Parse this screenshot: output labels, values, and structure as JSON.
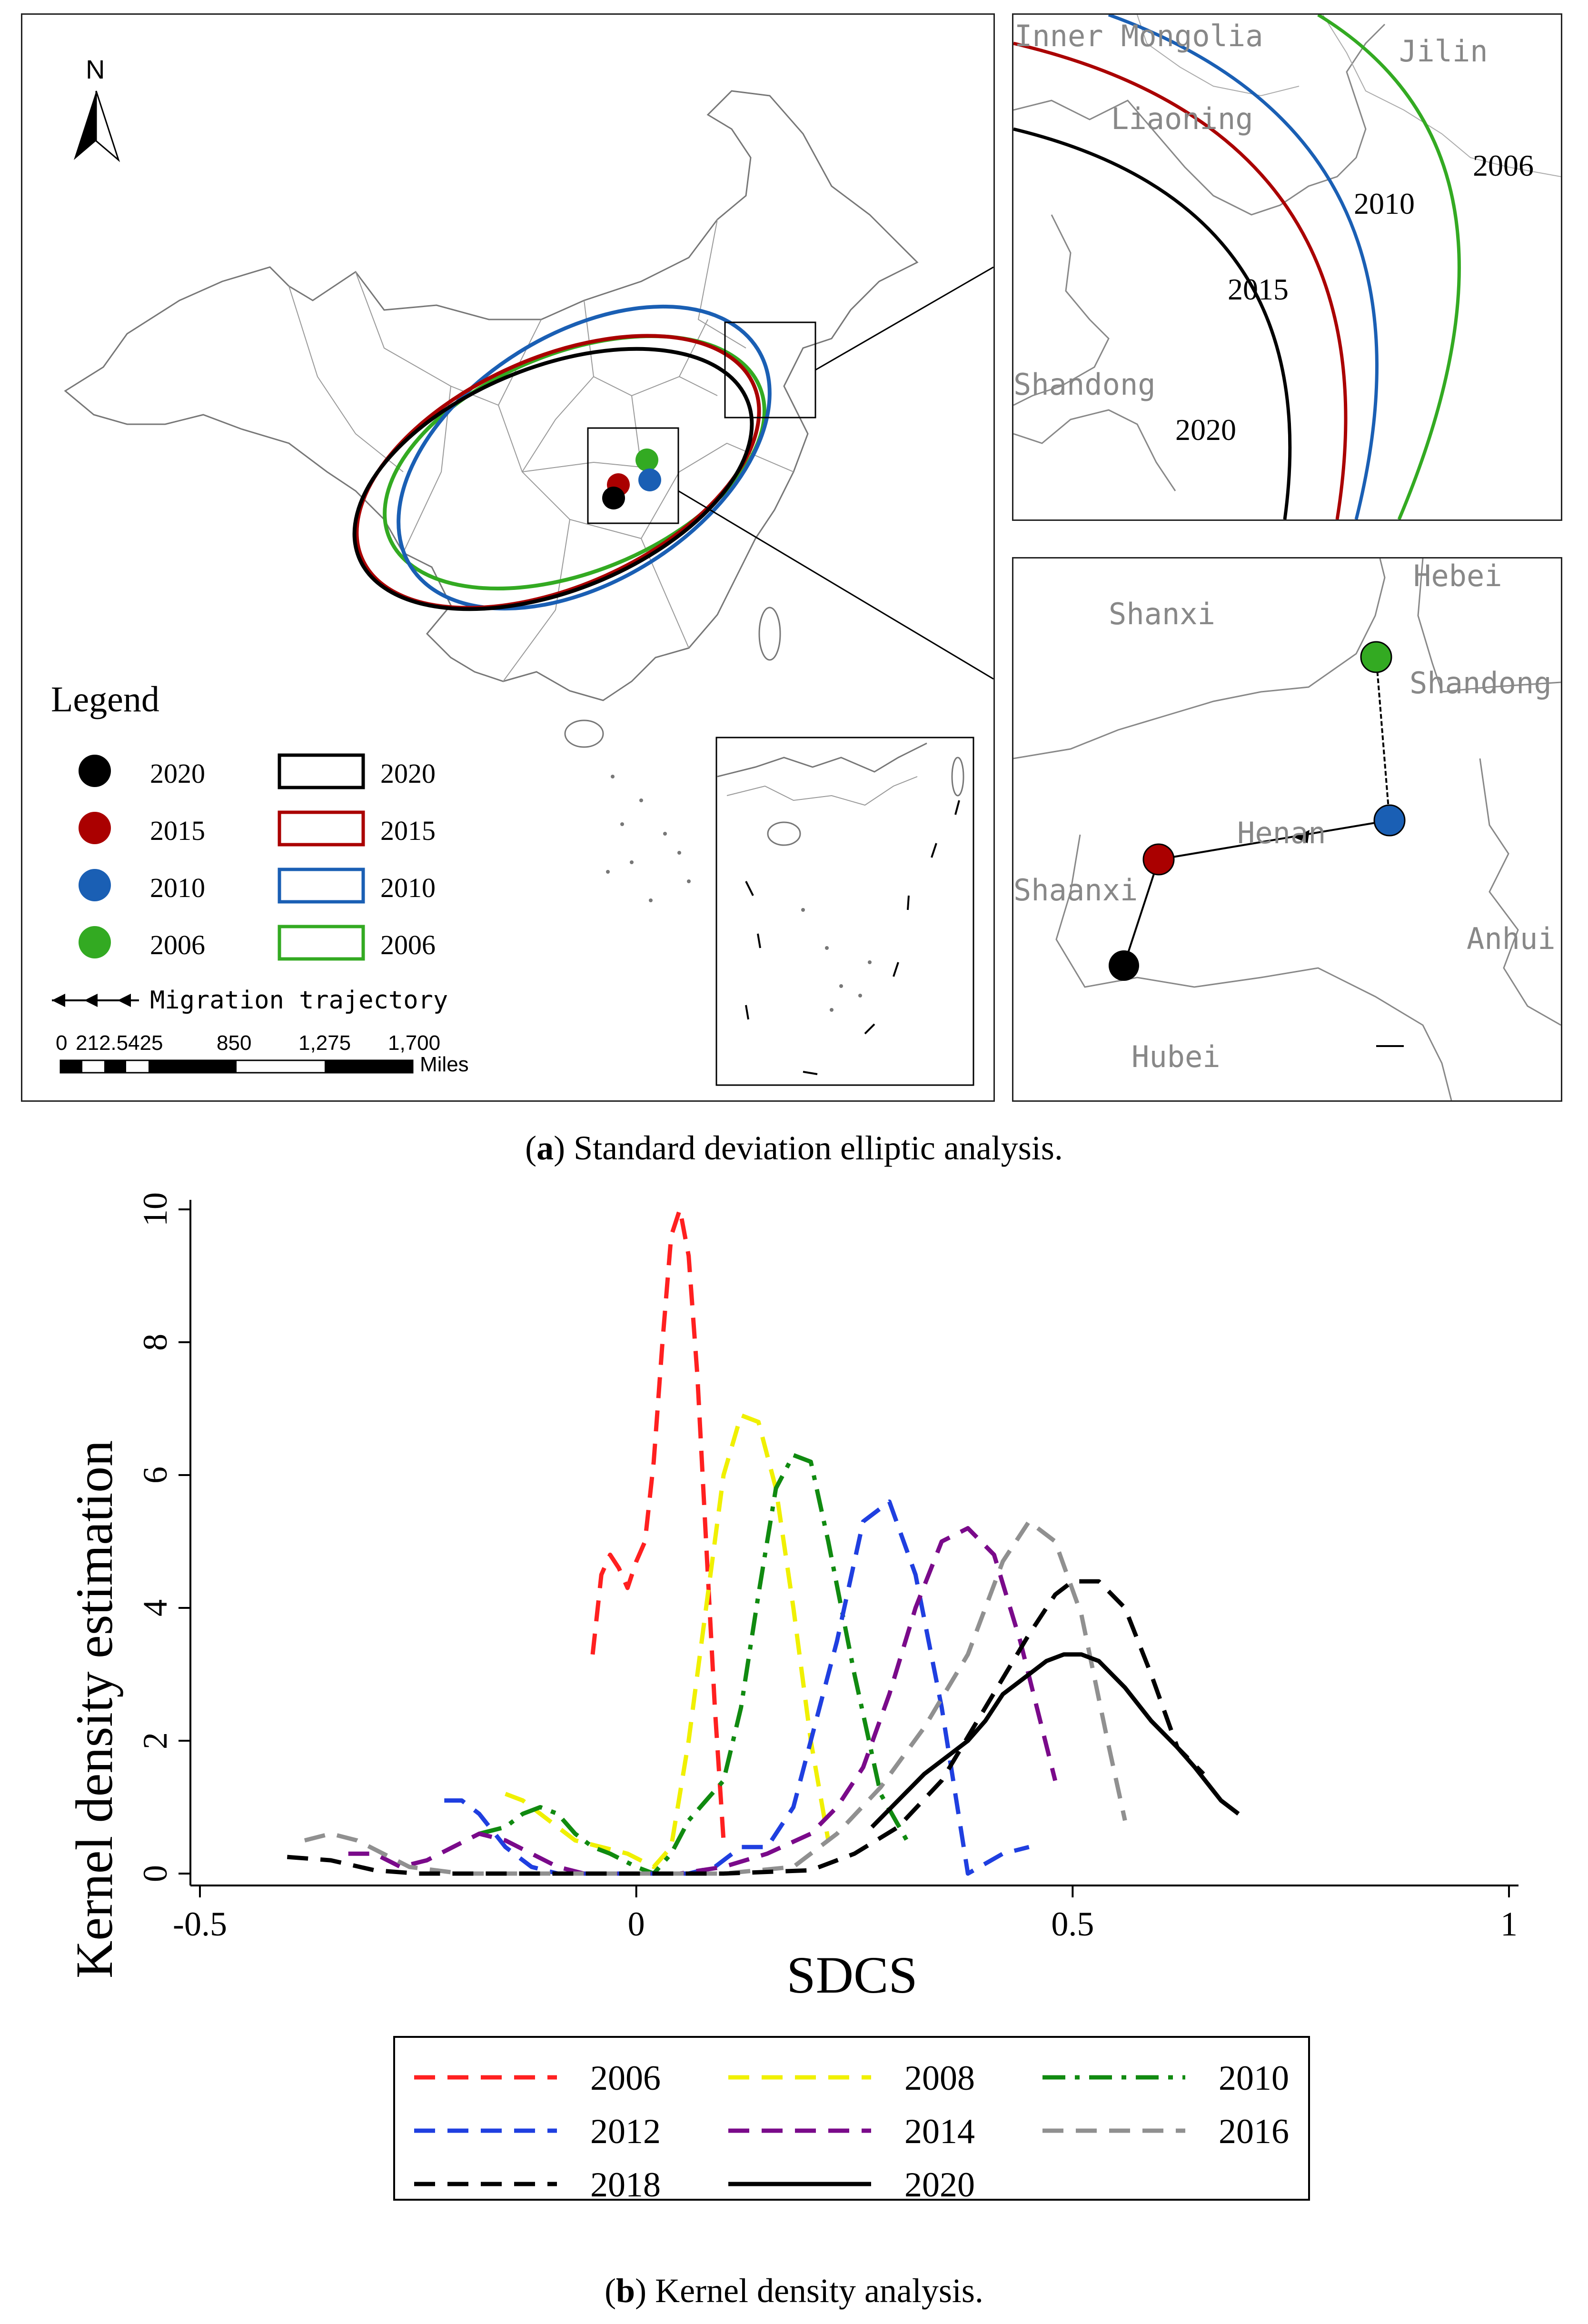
{
  "panel_a": {
    "north_label": "N",
    "legend_title": "Legend",
    "point_legend": [
      {
        "label": "2020",
        "color": "#000000"
      },
      {
        "label": "2015",
        "color": "#aa0000"
      },
      {
        "label": "2010",
        "color": "#1a5fb4"
      },
      {
        "label": "2006",
        "color": "#33aa22"
      }
    ],
    "ellipse_legend": [
      {
        "label": "2020",
        "color": "#000000"
      },
      {
        "label": "2015",
        "color": "#aa0000"
      },
      {
        "label": "2010",
        "color": "#1a5fb4"
      },
      {
        "label": "2006",
        "color": "#33aa22"
      }
    ],
    "migration_label": "Migration trajectory",
    "scale_ticks": [
      "0",
      "212.5",
      "425",
      "850",
      "1,275",
      "1,700"
    ],
    "scale_unit": "Miles",
    "inset_top": {
      "regions": [
        "Inner Mongolia",
        "Jilin",
        "Liaoning",
        "Shandong"
      ],
      "years": [
        "2006",
        "2010",
        "2015",
        "2020"
      ]
    },
    "inset_bottom": {
      "regions": [
        "Shanxi",
        "Hebei",
        "Shandong",
        "Henan",
        "Shaanxi",
        "Anhui",
        "Hubei"
      ]
    }
  },
  "caption_a": {
    "letter": "a",
    "text": " Standard deviation elliptic analysis."
  },
  "caption_b": {
    "letter": "b",
    "text": " Kernel density analysis."
  },
  "chart_data": {
    "type": "line",
    "title": "",
    "xlabel": "SDCS",
    "ylabel": "Kernel density estimation",
    "xlim": [
      -0.5,
      1
    ],
    "ylim": [
      0,
      10
    ],
    "xticks": [
      "-0.5",
      "0",
      "0.5",
      "1"
    ],
    "yticks": [
      "0",
      "2",
      "4",
      "6",
      "8",
      "10"
    ],
    "legend_position": "bottom",
    "series": [
      {
        "name": "2006",
        "color": "#ff2020",
        "dash": "dash",
        "x": [
          -0.05,
          -0.04,
          -0.03,
          -0.02,
          -0.01,
          0.0,
          0.01,
          0.02,
          0.03,
          0.04,
          0.05,
          0.06,
          0.07,
          0.08,
          0.09,
          0.1
        ],
        "y": [
          3.3,
          4.5,
          4.8,
          4.6,
          4.3,
          4.7,
          5.0,
          6.2,
          8.0,
          9.6,
          10.0,
          9.3,
          7.5,
          5.0,
          2.5,
          0.5
        ]
      },
      {
        "name": "2008",
        "color": "#f0f000",
        "dash": "dash",
        "x": [
          -0.15,
          -0.13,
          -0.1,
          -0.07,
          -0.04,
          -0.01,
          0.02,
          0.04,
          0.06,
          0.08,
          0.1,
          0.12,
          0.14,
          0.16,
          0.18,
          0.2,
          0.22
        ],
        "y": [
          1.2,
          1.1,
          0.8,
          0.5,
          0.4,
          0.3,
          0.1,
          0.4,
          2.0,
          4.0,
          6.0,
          6.9,
          6.8,
          5.8,
          4.0,
          2.0,
          0.5
        ]
      },
      {
        "name": "2010",
        "color": "#108a10",
        "dash": "dashdot",
        "x": [
          -0.18,
          -0.15,
          -0.13,
          -0.11,
          -0.09,
          -0.07,
          -0.05,
          -0.03,
          0.0,
          0.02,
          0.04,
          0.06,
          0.08,
          0.1,
          0.12,
          0.14,
          0.16,
          0.18,
          0.2,
          0.22,
          0.25,
          0.28,
          0.31
        ],
        "y": [
          0.6,
          0.7,
          0.9,
          1.0,
          0.9,
          0.6,
          0.4,
          0.3,
          0.1,
          0.0,
          0.3,
          0.8,
          1.1,
          1.4,
          2.5,
          4.2,
          5.8,
          6.3,
          6.2,
          5.0,
          3.0,
          1.2,
          0.5
        ]
      },
      {
        "name": "2012",
        "color": "#1f3fe0",
        "dash": "dash",
        "x": [
          -0.22,
          -0.2,
          -0.18,
          -0.15,
          -0.12,
          -0.09,
          -0.06,
          -0.03,
          0.0,
          0.03,
          0.06,
          0.09,
          0.12,
          0.15,
          0.18,
          0.2,
          0.23,
          0.26,
          0.29,
          0.32,
          0.35,
          0.38,
          0.42,
          0.45
        ],
        "y": [
          1.1,
          1.1,
          0.9,
          0.4,
          0.1,
          0.0,
          0.0,
          0.0,
          0.0,
          0.0,
          0.0,
          0.1,
          0.4,
          0.4,
          1.0,
          2.0,
          3.5,
          5.3,
          5.6,
          4.5,
          2.5,
          0.0,
          0.3,
          0.4
        ]
      },
      {
        "name": "2014",
        "color": "#7a0a8a",
        "dash": "dash",
        "x": [
          -0.33,
          -0.3,
          -0.27,
          -0.24,
          -0.21,
          -0.18,
          -0.15,
          -0.12,
          -0.09,
          -0.06,
          -0.03,
          0.0,
          0.05,
          0.1,
          0.15,
          0.2,
          0.23,
          0.26,
          0.29,
          0.32,
          0.35,
          0.38,
          0.41,
          0.44,
          0.48
        ],
        "y": [
          0.3,
          0.3,
          0.1,
          0.2,
          0.4,
          0.6,
          0.5,
          0.3,
          0.1,
          0.0,
          0.0,
          0.0,
          0.0,
          0.1,
          0.3,
          0.6,
          1.0,
          1.6,
          2.7,
          4.0,
          5.0,
          5.2,
          4.8,
          3.5,
          1.4
        ]
      },
      {
        "name": "2016",
        "color": "#909090",
        "dash": "dash",
        "x": [
          -0.38,
          -0.35,
          -0.32,
          -0.29,
          -0.26,
          -0.2,
          -0.1,
          0.0,
          0.1,
          0.18,
          0.23,
          0.28,
          0.33,
          0.38,
          0.42,
          0.45,
          0.48,
          0.51,
          0.54,
          0.56
        ],
        "y": [
          0.5,
          0.6,
          0.5,
          0.3,
          0.1,
          0.0,
          0.0,
          0.0,
          0.0,
          0.1,
          0.6,
          1.3,
          2.2,
          3.3,
          4.7,
          5.3,
          5.0,
          3.9,
          2.0,
          0.8
        ]
      },
      {
        "name": "2018",
        "color": "#000000",
        "dash": "dash",
        "x": [
          -0.4,
          -0.35,
          -0.3,
          -0.25,
          -0.2,
          -0.1,
          0.0,
          0.1,
          0.2,
          0.25,
          0.3,
          0.35,
          0.4,
          0.45,
          0.48,
          0.5,
          0.53,
          0.56,
          0.59,
          0.62,
          0.65
        ],
        "y": [
          0.25,
          0.2,
          0.05,
          0.0,
          0.0,
          0.0,
          0.0,
          0.0,
          0.05,
          0.3,
          0.7,
          1.4,
          2.5,
          3.6,
          4.2,
          4.4,
          4.4,
          4.0,
          3.0,
          1.9,
          1.5
        ]
      },
      {
        "name": "2020",
        "color": "#000000",
        "dash": "solid",
        "x": [
          0.27,
          0.3,
          0.33,
          0.36,
          0.38,
          0.4,
          0.42,
          0.45,
          0.47,
          0.49,
          0.51,
          0.53,
          0.56,
          0.59,
          0.62,
          0.64,
          0.67,
          0.69
        ],
        "y": [
          0.7,
          1.1,
          1.5,
          1.8,
          2.0,
          2.3,
          2.7,
          3.0,
          3.2,
          3.3,
          3.3,
          3.2,
          2.8,
          2.3,
          1.9,
          1.6,
          1.1,
          0.9
        ]
      }
    ]
  }
}
